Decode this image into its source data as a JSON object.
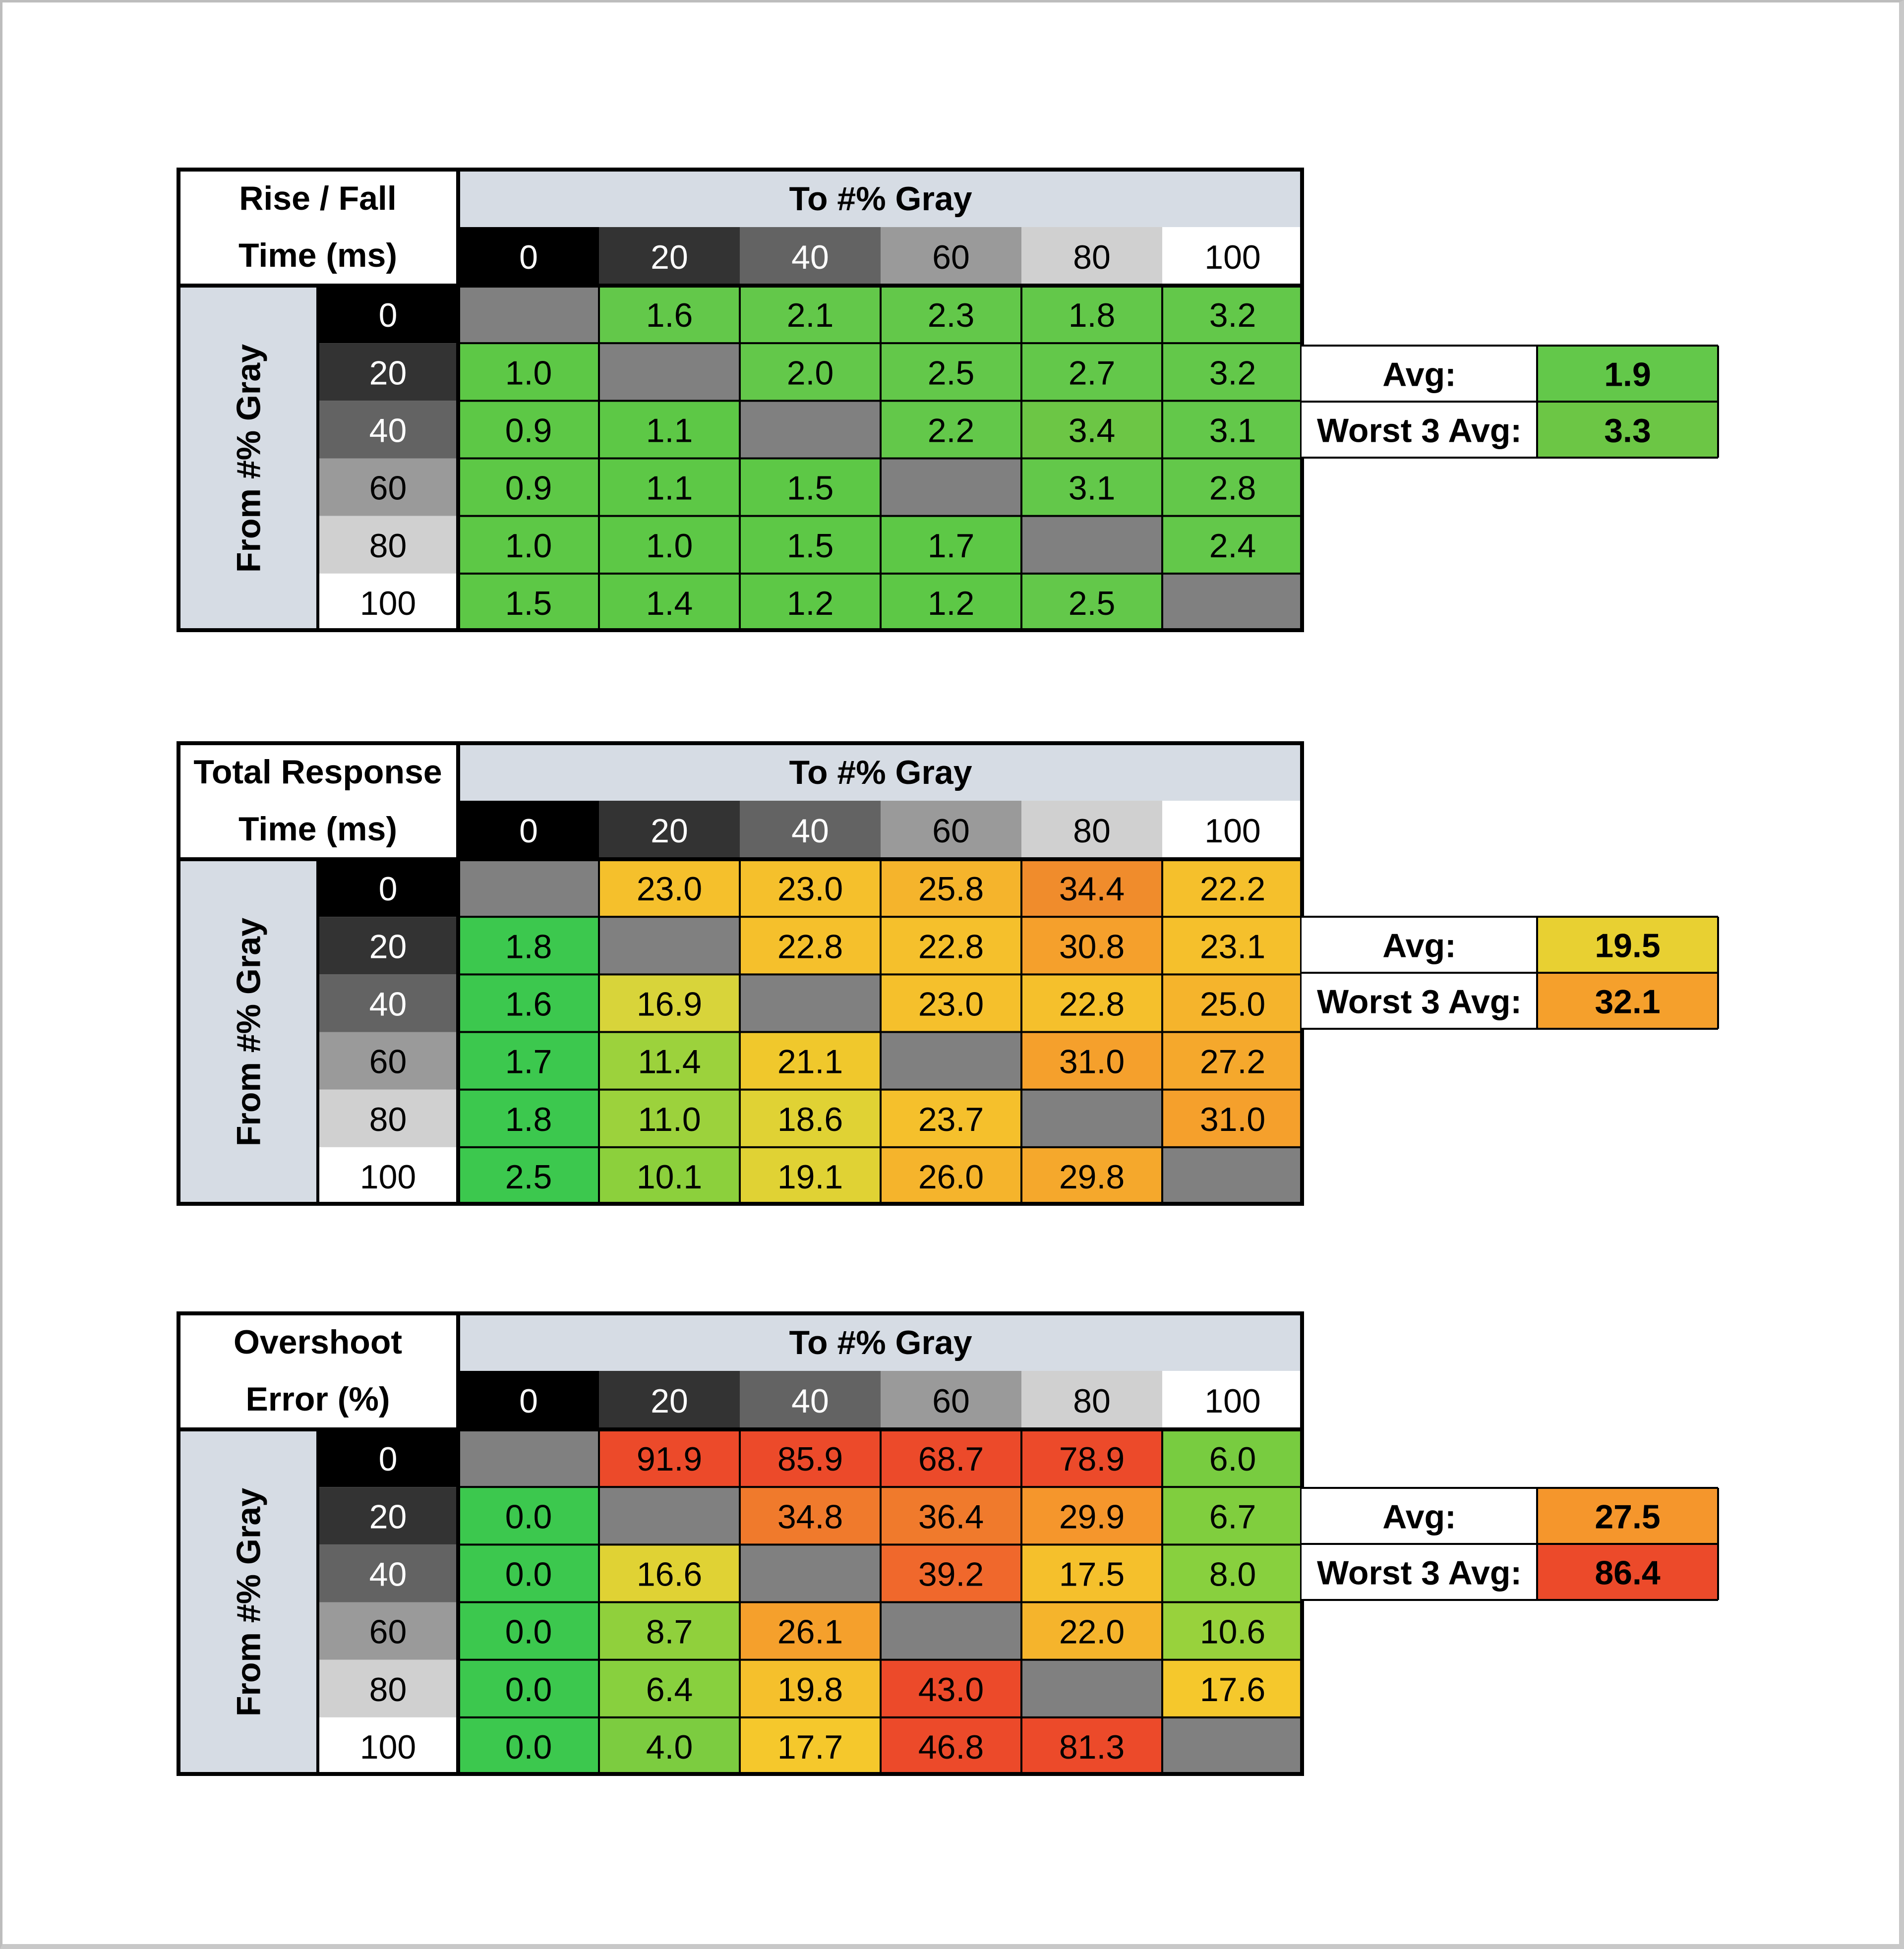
{
  "chart_data": [
    {
      "type": "table",
      "title_lines": [
        "Rise / Fall",
        "Time (ms)"
      ],
      "col_header": "To #% Gray",
      "row_header": "From #% Gray",
      "levels": [
        "0",
        "20",
        "40",
        "60",
        "80",
        "100"
      ],
      "values": [
        [
          null,
          "1.6",
          "2.1",
          "2.3",
          "1.8",
          "3.2"
        ],
        [
          "1.0",
          null,
          "2.0",
          "2.5",
          "2.7",
          "3.2"
        ],
        [
          "0.9",
          "1.1",
          null,
          "2.2",
          "3.4",
          "3.1"
        ],
        [
          "0.9",
          "1.1",
          "1.5",
          null,
          "3.1",
          "2.8"
        ],
        [
          "1.0",
          "1.0",
          "1.5",
          "1.7",
          null,
          "2.4"
        ],
        [
          "1.5",
          "1.4",
          "1.2",
          "1.2",
          "2.5",
          null
        ]
      ],
      "cell_colors": [
        [
          null,
          "#63c84a",
          "#63c84a",
          "#63c84a",
          "#63c84a",
          "#63c84a"
        ],
        [
          "#5dc846",
          null,
          "#63c84a",
          "#63c84a",
          "#63c84a",
          "#63c84a"
        ],
        [
          "#5dc846",
          "#5dc846",
          null,
          "#63c84a",
          "#6cc645",
          "#63c84a"
        ],
        [
          "#5dc846",
          "#5dc846",
          "#5dc846",
          null,
          "#63c84a",
          "#63c84a"
        ],
        [
          "#5dc846",
          "#5dc846",
          "#5dc846",
          "#5dc846",
          null,
          "#63c84a"
        ],
        [
          "#5dc846",
          "#5dc846",
          "#5dc846",
          "#5dc846",
          "#63c84a",
          null
        ]
      ],
      "summary": [
        {
          "label": "Avg:",
          "value": "1.9",
          "color": "#63c84a"
        },
        {
          "label": "Worst 3 Avg:",
          "value": "3.3",
          "color": "#6cc645"
        }
      ]
    },
    {
      "type": "table",
      "title_lines": [
        "Total Response",
        "Time (ms)"
      ],
      "col_header": "To #% Gray",
      "row_header": "From #% Gray",
      "levels": [
        "0",
        "20",
        "40",
        "60",
        "80",
        "100"
      ],
      "values": [
        [
          null,
          "23.0",
          "23.0",
          "25.8",
          "34.4",
          "22.2"
        ],
        [
          "1.8",
          null,
          "22.8",
          "22.8",
          "30.8",
          "23.1"
        ],
        [
          "1.6",
          "16.9",
          null,
          "23.0",
          "22.8",
          "25.0"
        ],
        [
          "1.7",
          "11.4",
          "21.1",
          null,
          "31.0",
          "27.2"
        ],
        [
          "1.8",
          "11.0",
          "18.6",
          "23.7",
          null,
          "31.0"
        ],
        [
          "2.5",
          "10.1",
          "19.1",
          "26.0",
          "29.8",
          null
        ]
      ],
      "cell_colors": [
        [
          null,
          "#f5c02c",
          "#f5c02c",
          "#f5b42c",
          "#f08c2c",
          "#f5c02c"
        ],
        [
          "#3cc84e",
          null,
          "#f5c02c",
          "#f5c02c",
          "#f5a02c",
          "#f5c02c"
        ],
        [
          "#3cc84e",
          "#d8d43a",
          null,
          "#f5c02c",
          "#f5c02c",
          "#f5b42c"
        ],
        [
          "#3cc84e",
          "#9cd23c",
          "#f0c82c",
          null,
          "#f5a02c",
          "#f5a82c"
        ],
        [
          "#3cc84e",
          "#9cd23c",
          "#e0d234",
          "#f5c02c",
          null,
          "#f5a02c"
        ],
        [
          "#3cc84e",
          "#8cd03c",
          "#e0d234",
          "#f5b42c",
          "#f5a82c",
          null
        ]
      ],
      "summary": [
        {
          "label": "Avg:",
          "value": "19.5",
          "color": "#e8d032"
        },
        {
          "label": "Worst 3 Avg:",
          "value": "32.1",
          "color": "#f5a02c"
        }
      ]
    },
    {
      "type": "table",
      "title_lines": [
        "Overshoot",
        "Error (%)"
      ],
      "col_header": "To #% Gray",
      "row_header": "From #% Gray",
      "levels": [
        "0",
        "20",
        "40",
        "60",
        "80",
        "100"
      ],
      "values": [
        [
          null,
          "91.9",
          "85.9",
          "68.7",
          "78.9",
          "6.0"
        ],
        [
          "0.0",
          null,
          "34.8",
          "36.4",
          "29.9",
          "6.7"
        ],
        [
          "0.0",
          "16.6",
          null,
          "39.2",
          "17.5",
          "8.0"
        ],
        [
          "0.0",
          "8.7",
          "26.1",
          null,
          "22.0",
          "10.6"
        ],
        [
          "0.0",
          "6.4",
          "19.8",
          "43.0",
          null,
          "17.6"
        ],
        [
          "0.0",
          "4.0",
          "17.7",
          "46.8",
          "81.3",
          null
        ]
      ],
      "cell_colors": [
        [
          null,
          "#ec4a2a",
          "#ec4a2a",
          "#ec4a2a",
          "#ec4a2a",
          "#78cc40"
        ],
        [
          "#3cc84e",
          null,
          "#f07a2c",
          "#f07a2c",
          "#f5962c",
          "#80ce3e"
        ],
        [
          "#3cc84e",
          "#e0d234",
          null,
          "#f0682c",
          "#f5c02c",
          "#88d03e"
        ],
        [
          "#3cc84e",
          "#90d03c",
          "#f5a02c",
          null,
          "#f5b42c",
          "#98d23c"
        ],
        [
          "#3cc84e",
          "#88d03e",
          "#f5c02c",
          "#ec4a2a",
          null,
          "#f5c82c"
        ],
        [
          "#3cc84e",
          "#7ccc40",
          "#f5c82c",
          "#ec4a2a",
          "#ec4a2a",
          null
        ]
      ],
      "summary": [
        {
          "label": "Avg:",
          "value": "27.5",
          "color": "#f5962c"
        },
        {
          "label": "Worst 3 Avg:",
          "value": "86.4",
          "color": "#ec4a2a"
        }
      ]
    }
  ],
  "styles": {
    "header_bg": "#d6dce4",
    "empty_cell": "#808080",
    "grid_line": "#000000",
    "level_bg": [
      "#000000",
      "#333333",
      "#636363",
      "#9a9a9a",
      "#d0d0d0",
      "#ffffff"
    ],
    "level_fg": [
      "#ffffff",
      "#ffffff",
      "#ffffff",
      "#000000",
      "#000000",
      "#000000"
    ]
  }
}
